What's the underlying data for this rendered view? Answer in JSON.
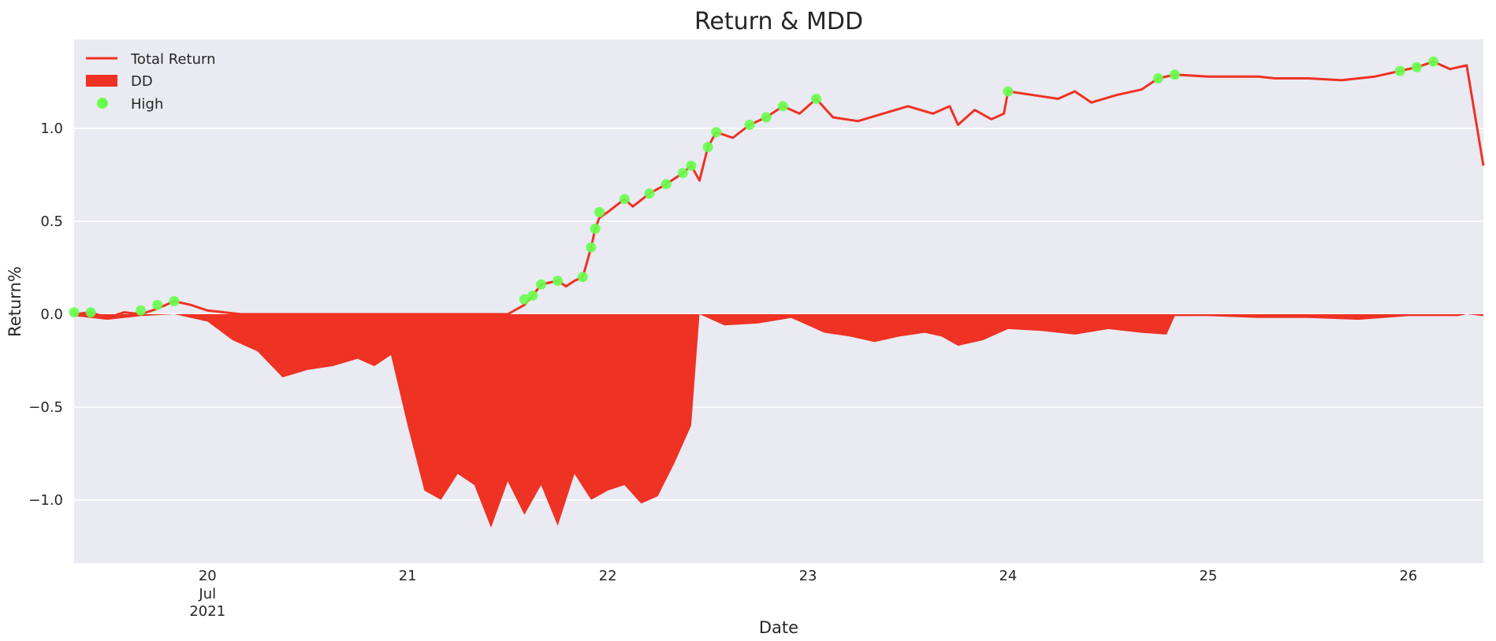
{
  "chart_data": {
    "type": "line",
    "title": "Return & MDD",
    "xlabel": "Date",
    "ylabel": "Return%",
    "x_range": [
      "2021-07-19 08:00",
      "2021-07-26 09:00"
    ],
    "ylim": [
      -1.34,
      1.48
    ],
    "y_ticks": [
      {
        "value": 1.0,
        "label": "1.0"
      },
      {
        "value": 0.5,
        "label": "0.5"
      },
      {
        "value": 0.0,
        "label": "0.0"
      },
      {
        "value": -0.5,
        "label": "−0.5"
      },
      {
        "value": -1.0,
        "label": "−1.0"
      }
    ],
    "x_ticks": [
      {
        "x": "2021-07-20",
        "label": "20"
      },
      {
        "x": "2021-07-21",
        "label": "21"
      },
      {
        "x": "2021-07-22",
        "label": "22"
      },
      {
        "x": "2021-07-23",
        "label": "23"
      },
      {
        "x": "2021-07-24",
        "label": "24"
      },
      {
        "x": "2021-07-25",
        "label": "25"
      },
      {
        "x": "2021-07-26",
        "label": "26"
      }
    ],
    "x_sublabels": [
      "Jul",
      "2021"
    ],
    "grid": true,
    "legend_position": "top-left",
    "series": [
      {
        "name": "Total Return",
        "kind": "line",
        "color": "#EE3224",
        "points": [
          [
            "2021-07-19 08:00",
            0.0
          ],
          [
            "2021-07-19 10:00",
            0.01
          ],
          [
            "2021-07-19 12:00",
            -0.02
          ],
          [
            "2021-07-19 14:00",
            0.01
          ],
          [
            "2021-07-19 16:00",
            0.0
          ],
          [
            "2021-07-19 18:00",
            0.03
          ],
          [
            "2021-07-19 20:00",
            0.07
          ],
          [
            "2021-07-19 22:00",
            0.05
          ],
          [
            "2021-07-20 00:00",
            0.02
          ],
          [
            "2021-07-20 04:00",
            0.0
          ],
          [
            "2021-07-20 12:00",
            0.0
          ],
          [
            "2021-07-21 00:00",
            0.0
          ],
          [
            "2021-07-21 12:00",
            0.0
          ],
          [
            "2021-07-21 14:00",
            0.05
          ],
          [
            "2021-07-21 15:00",
            0.1
          ],
          [
            "2021-07-21 16:00",
            0.16
          ],
          [
            "2021-07-21 17:00",
            0.17
          ],
          [
            "2021-07-21 18:00",
            0.18
          ],
          [
            "2021-07-21 19:00",
            0.15
          ],
          [
            "2021-07-21 20:00",
            0.18
          ],
          [
            "2021-07-21 21:00",
            0.2
          ],
          [
            "2021-07-21 22:00",
            0.36
          ],
          [
            "2021-07-21 22:30",
            0.46
          ],
          [
            "2021-07-21 23:00",
            0.52
          ],
          [
            "2021-07-22 00:00",
            0.55
          ],
          [
            "2021-07-22 02:00",
            0.62
          ],
          [
            "2021-07-22 03:00",
            0.58
          ],
          [
            "2021-07-22 05:00",
            0.65
          ],
          [
            "2021-07-22 07:00",
            0.7
          ],
          [
            "2021-07-22 09:00",
            0.76
          ],
          [
            "2021-07-22 10:00",
            0.8
          ],
          [
            "2021-07-22 11:00",
            0.72
          ],
          [
            "2021-07-22 12:00",
            0.9
          ],
          [
            "2021-07-22 13:00",
            0.98
          ],
          [
            "2021-07-22 15:00",
            0.95
          ],
          [
            "2021-07-22 17:00",
            1.02
          ],
          [
            "2021-07-22 19:00",
            1.06
          ],
          [
            "2021-07-22 21:00",
            1.12
          ],
          [
            "2021-07-22 23:00",
            1.08
          ],
          [
            "2021-07-23 01:00",
            1.16
          ],
          [
            "2021-07-23 03:00",
            1.06
          ],
          [
            "2021-07-23 06:00",
            1.04
          ],
          [
            "2021-07-23 09:00",
            1.08
          ],
          [
            "2021-07-23 12:00",
            1.12
          ],
          [
            "2021-07-23 15:00",
            1.08
          ],
          [
            "2021-07-23 17:00",
            1.12
          ],
          [
            "2021-07-23 18:00",
            1.02
          ],
          [
            "2021-07-23 20:00",
            1.1
          ],
          [
            "2021-07-23 22:00",
            1.05
          ],
          [
            "2021-07-23 23:30",
            1.08
          ],
          [
            "2021-07-24 00:00",
            1.2
          ],
          [
            "2021-07-24 03:00",
            1.18
          ],
          [
            "2021-07-24 06:00",
            1.16
          ],
          [
            "2021-07-24 08:00",
            1.2
          ],
          [
            "2021-07-24 10:00",
            1.14
          ],
          [
            "2021-07-24 13:00",
            1.18
          ],
          [
            "2021-07-24 16:00",
            1.21
          ],
          [
            "2021-07-24 18:00",
            1.27
          ],
          [
            "2021-07-24 20:00",
            1.29
          ],
          [
            "2021-07-25 00:00",
            1.28
          ],
          [
            "2021-07-25 06:00",
            1.28
          ],
          [
            "2021-07-25 08:00",
            1.27
          ],
          [
            "2021-07-25 12:00",
            1.27
          ],
          [
            "2021-07-25 16:00",
            1.26
          ],
          [
            "2021-07-25 20:00",
            1.28
          ],
          [
            "2021-07-25 23:00",
            1.31
          ],
          [
            "2021-07-26 01:00",
            1.33
          ],
          [
            "2021-07-26 03:00",
            1.36
          ],
          [
            "2021-07-26 05:00",
            1.32
          ],
          [
            "2021-07-26 07:00",
            1.34
          ],
          [
            "2021-07-26 09:00",
            0.8
          ]
        ]
      },
      {
        "name": "DD",
        "kind": "area",
        "color": "#EE3224",
        "points": [
          [
            "2021-07-19 08:00",
            -0.01
          ],
          [
            "2021-07-19 12:00",
            -0.03
          ],
          [
            "2021-07-19 16:00",
            -0.01
          ],
          [
            "2021-07-19 20:00",
            0.0
          ],
          [
            "2021-07-20 00:00",
            -0.04
          ],
          [
            "2021-07-20 03:00",
            -0.14
          ],
          [
            "2021-07-20 06:00",
            -0.2
          ],
          [
            "2021-07-20 09:00",
            -0.34
          ],
          [
            "2021-07-20 12:00",
            -0.3
          ],
          [
            "2021-07-20 15:00",
            -0.28
          ],
          [
            "2021-07-20 18:00",
            -0.24
          ],
          [
            "2021-07-20 20:00",
            -0.28
          ],
          [
            "2021-07-20 22:00",
            -0.22
          ],
          [
            "2021-07-21 00:00",
            -0.6
          ],
          [
            "2021-07-21 02:00",
            -0.95
          ],
          [
            "2021-07-21 04:00",
            -1.0
          ],
          [
            "2021-07-21 06:00",
            -0.86
          ],
          [
            "2021-07-21 08:00",
            -0.92
          ],
          [
            "2021-07-21 10:00",
            -1.15
          ],
          [
            "2021-07-21 12:00",
            -0.9
          ],
          [
            "2021-07-21 14:00",
            -1.08
          ],
          [
            "2021-07-21 16:00",
            -0.92
          ],
          [
            "2021-07-21 18:00",
            -1.14
          ],
          [
            "2021-07-21 20:00",
            -0.86
          ],
          [
            "2021-07-21 22:00",
            -1.0
          ],
          [
            "2021-07-22 00:00",
            -0.95
          ],
          [
            "2021-07-22 02:00",
            -0.92
          ],
          [
            "2021-07-22 04:00",
            -1.02
          ],
          [
            "2021-07-22 06:00",
            -0.98
          ],
          [
            "2021-07-22 08:00",
            -0.8
          ],
          [
            "2021-07-22 10:00",
            -0.6
          ],
          [
            "2021-07-22 11:00",
            0.0
          ],
          [
            "2021-07-22 14:00",
            -0.06
          ],
          [
            "2021-07-22 18:00",
            -0.05
          ],
          [
            "2021-07-22 22:00",
            -0.02
          ],
          [
            "2021-07-23 02:00",
            -0.1
          ],
          [
            "2021-07-23 05:00",
            -0.12
          ],
          [
            "2021-07-23 08:00",
            -0.15
          ],
          [
            "2021-07-23 11:00",
            -0.12
          ],
          [
            "2021-07-23 14:00",
            -0.1
          ],
          [
            "2021-07-23 16:00",
            -0.12
          ],
          [
            "2021-07-23 18:00",
            -0.17
          ],
          [
            "2021-07-23 21:00",
            -0.14
          ],
          [
            "2021-07-24 00:00",
            -0.08
          ],
          [
            "2021-07-24 04:00",
            -0.09
          ],
          [
            "2021-07-24 08:00",
            -0.11
          ],
          [
            "2021-07-24 12:00",
            -0.08
          ],
          [
            "2021-07-24 16:00",
            -0.1
          ],
          [
            "2021-07-24 19:00",
            -0.11
          ],
          [
            "2021-07-24 20:00",
            -0.01
          ],
          [
            "2021-07-25 00:00",
            -0.01
          ],
          [
            "2021-07-25 06:00",
            -0.02
          ],
          [
            "2021-07-25 12:00",
            -0.02
          ],
          [
            "2021-07-25 18:00",
            -0.03
          ],
          [
            "2021-07-26 00:00",
            -0.01
          ],
          [
            "2021-07-26 06:00",
            -0.01
          ],
          [
            "2021-07-26 07:00",
            0.0
          ],
          [
            "2021-07-26 09:00",
            -0.01
          ]
        ]
      },
      {
        "name": "High",
        "kind": "scatter",
        "color": "#66FF4D",
        "points": [
          [
            "2021-07-19 08:00",
            0.01
          ],
          [
            "2021-07-19 10:00",
            0.01
          ],
          [
            "2021-07-19 16:00",
            0.02
          ],
          [
            "2021-07-19 18:00",
            0.05
          ],
          [
            "2021-07-19 20:00",
            0.07
          ],
          [
            "2021-07-21 14:00",
            0.08
          ],
          [
            "2021-07-21 15:00",
            0.1
          ],
          [
            "2021-07-21 16:00",
            0.16
          ],
          [
            "2021-07-21 18:00",
            0.18
          ],
          [
            "2021-07-21 21:00",
            0.2
          ],
          [
            "2021-07-21 22:00",
            0.36
          ],
          [
            "2021-07-21 22:30",
            0.46
          ],
          [
            "2021-07-21 23:00",
            0.55
          ],
          [
            "2021-07-22 02:00",
            0.62
          ],
          [
            "2021-07-22 05:00",
            0.65
          ],
          [
            "2021-07-22 07:00",
            0.7
          ],
          [
            "2021-07-22 09:00",
            0.76
          ],
          [
            "2021-07-22 10:00",
            0.8
          ],
          [
            "2021-07-22 12:00",
            0.9
          ],
          [
            "2021-07-22 13:00",
            0.98
          ],
          [
            "2021-07-22 17:00",
            1.02
          ],
          [
            "2021-07-22 19:00",
            1.06
          ],
          [
            "2021-07-22 21:00",
            1.12
          ],
          [
            "2021-07-23 01:00",
            1.16
          ],
          [
            "2021-07-24 00:00",
            1.2
          ],
          [
            "2021-07-24 18:00",
            1.27
          ],
          [
            "2021-07-24 20:00",
            1.29
          ],
          [
            "2021-07-25 23:00",
            1.31
          ],
          [
            "2021-07-26 01:00",
            1.33
          ],
          [
            "2021-07-26 03:00",
            1.36
          ]
        ]
      }
    ]
  }
}
